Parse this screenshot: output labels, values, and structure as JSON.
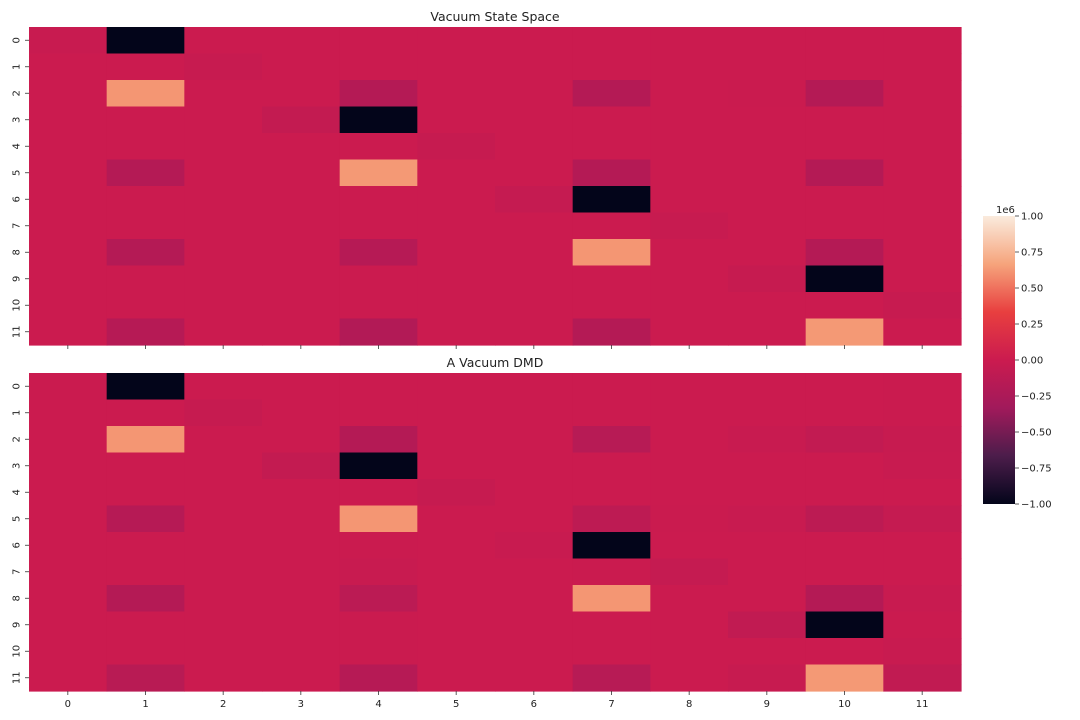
{
  "chart_data": [
    {
      "type": "heatmap",
      "title": "Vacuum State Space",
      "x_tick_labels": [],
      "y_tick_labels": [
        "0",
        "1",
        "2",
        "3",
        "4",
        "5",
        "6",
        "7",
        "8",
        "9",
        "10",
        "11"
      ],
      "values": [
        [
          -0.02,
          -1.0,
          0.0,
          0.0,
          0.0,
          0.0,
          0.0,
          0.0,
          0.0,
          0.0,
          0.0,
          0.0
        ],
        [
          0.0,
          0.0,
          -0.03,
          0.0,
          0.0,
          0.0,
          0.0,
          0.0,
          0.0,
          0.0,
          0.0,
          0.0
        ],
        [
          0.0,
          0.62,
          0.0,
          0.0,
          -0.18,
          0.0,
          0.0,
          -0.18,
          0.0,
          -0.01,
          -0.18,
          0.0
        ],
        [
          0.0,
          0.0,
          0.0,
          -0.06,
          -1.0,
          0.0,
          0.0,
          0.0,
          0.0,
          0.0,
          0.0,
          0.0
        ],
        [
          0.0,
          0.0,
          0.0,
          0.0,
          0.0,
          -0.04,
          0.0,
          0.0,
          0.0,
          0.0,
          0.0,
          0.0
        ],
        [
          0.0,
          -0.18,
          0.0,
          0.0,
          0.63,
          0.0,
          0.0,
          -0.18,
          0.0,
          0.0,
          -0.18,
          0.0
        ],
        [
          0.0,
          0.0,
          0.0,
          0.0,
          0.0,
          0.0,
          -0.05,
          -1.0,
          0.0,
          0.0,
          0.0,
          0.0
        ],
        [
          0.0,
          0.0,
          0.0,
          0.0,
          0.0,
          0.0,
          0.0,
          0.0,
          -0.03,
          0.0,
          0.0,
          0.0
        ],
        [
          0.0,
          -0.18,
          0.0,
          0.0,
          -0.17,
          0.0,
          0.0,
          0.62,
          0.0,
          0.0,
          -0.18,
          0.0
        ],
        [
          0.0,
          0.0,
          0.0,
          0.0,
          0.0,
          0.0,
          0.0,
          0.0,
          0.0,
          -0.04,
          -1.0,
          0.0
        ],
        [
          0.0,
          0.0,
          0.0,
          0.0,
          0.0,
          0.0,
          0.0,
          0.0,
          0.0,
          0.0,
          0.0,
          -0.03
        ],
        [
          0.0,
          -0.17,
          0.0,
          0.0,
          -0.2,
          0.0,
          0.0,
          -0.18,
          0.0,
          0.0,
          0.63,
          0.0
        ]
      ]
    },
    {
      "type": "heatmap",
      "title": "A Vacuum DMD",
      "x_tick_labels": [
        "0",
        "1",
        "2",
        "3",
        "4",
        "5",
        "6",
        "7",
        "8",
        "9",
        "10",
        "11"
      ],
      "y_tick_labels": [
        "0",
        "1",
        "2",
        "3",
        "4",
        "5",
        "6",
        "7",
        "8",
        "9",
        "10",
        "11"
      ],
      "values": [
        [
          -0.01,
          -1.0,
          0.0,
          0.0,
          0.0,
          0.0,
          0.0,
          0.0,
          0.0,
          0.0,
          0.0,
          -0.01
        ],
        [
          0.0,
          0.0,
          -0.04,
          0.0,
          0.0,
          0.0,
          0.0,
          0.0,
          0.0,
          0.0,
          0.0,
          -0.01
        ],
        [
          0.0,
          0.62,
          0.0,
          0.0,
          -0.18,
          0.0,
          0.0,
          -0.16,
          0.0,
          -0.02,
          -0.07,
          -0.03
        ],
        [
          0.0,
          0.0,
          0.0,
          -0.06,
          -1.0,
          0.0,
          0.0,
          0.0,
          0.0,
          0.0,
          0.0,
          -0.02
        ],
        [
          0.0,
          0.0,
          0.0,
          0.0,
          0.0,
          -0.04,
          0.0,
          0.0,
          0.0,
          0.0,
          0.0,
          0.0
        ],
        [
          0.0,
          -0.17,
          0.0,
          0.0,
          0.62,
          0.0,
          0.0,
          -0.11,
          -0.01,
          -0.02,
          -0.12,
          -0.05
        ],
        [
          0.0,
          0.0,
          0.0,
          0.0,
          -0.01,
          0.0,
          -0.02,
          -1.0,
          0.0,
          0.0,
          0.0,
          0.0
        ],
        [
          0.0,
          0.0,
          0.0,
          0.0,
          -0.02,
          0.0,
          0.0,
          -0.01,
          -0.05,
          0.0,
          0.0,
          0.0
        ],
        [
          0.0,
          -0.18,
          0.0,
          0.0,
          -0.13,
          0.0,
          0.0,
          0.62,
          0.0,
          0.0,
          -0.18,
          -0.02
        ],
        [
          0.0,
          0.0,
          0.0,
          0.0,
          -0.01,
          0.0,
          0.0,
          0.0,
          0.0,
          -0.08,
          -1.0,
          -0.01
        ],
        [
          0.0,
          0.0,
          0.0,
          0.0,
          -0.01,
          0.0,
          0.0,
          0.0,
          0.0,
          0.0,
          0.0,
          -0.02
        ],
        [
          0.0,
          -0.15,
          0.0,
          0.0,
          -0.17,
          0.0,
          0.0,
          -0.16,
          0.0,
          -0.03,
          0.63,
          -0.08
        ]
      ]
    }
  ],
  "colorbar": {
    "multiplier": "1e6",
    "vmin": -1.0,
    "vmax": 1.0,
    "ticks": [
      1.0,
      0.75,
      0.5,
      0.25,
      0.0,
      -0.25,
      -0.5,
      -0.75,
      -1.0
    ],
    "tick_labels": [
      "1.00",
      "0.75",
      "0.50",
      "0.25",
      "0.00",
      "−0.25",
      "−0.50",
      "−0.75",
      "−1.00"
    ],
    "colormap": "rocket",
    "colors": [
      "#03051a",
      "#4c1d4b",
      "#a11a5b",
      "#cb1b4f",
      "#e83f3f",
      "#f6a47c",
      "#faebdd"
    ]
  }
}
